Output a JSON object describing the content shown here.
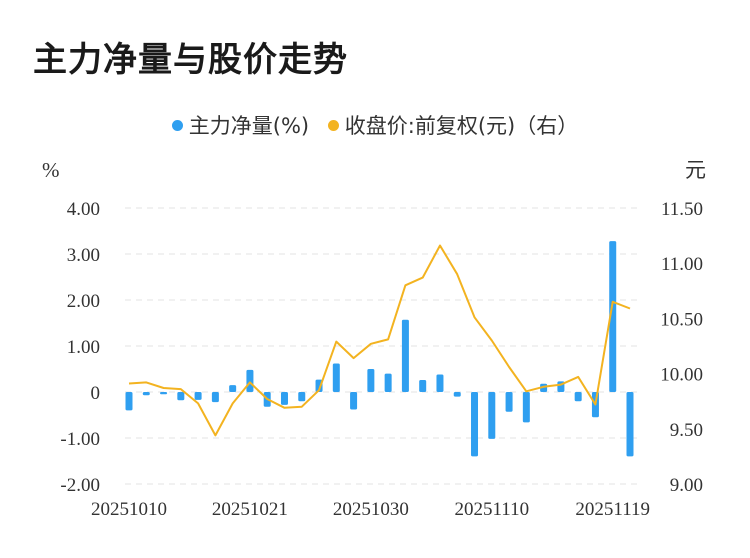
{
  "title": "主力净量与股价走势",
  "legend": [
    {
      "label": "主力净量(%)",
      "color": "#2f9ff0"
    },
    {
      "label": "收盘价:前复权(元)（右）",
      "color": "#f3b320"
    }
  ],
  "chart_data": {
    "type": "bar+line",
    "left_unit": "%",
    "right_unit": "元",
    "left_ylim": [
      -2.0,
      4.0
    ],
    "right_ylim": [
      9.0,
      11.5
    ],
    "left_ticks": [
      "4.00",
      "3.00",
      "2.00",
      "1.00",
      "0",
      "-1.00",
      "-2.00"
    ],
    "right_ticks": [
      "11.50",
      "11.00",
      "10.50",
      "10.00",
      "9.50",
      "9.00"
    ],
    "x_tick_labels": [
      "20251010",
      "20251021",
      "20251030",
      "20251110",
      "20251119"
    ],
    "x_tick_index": [
      0,
      7,
      14,
      21,
      28
    ],
    "grid": true,
    "series": [
      {
        "name": "主力净量(%)",
        "kind": "bar",
        "color": "#2f9ff0",
        "values": [
          -0.4,
          -0.07,
          -0.05,
          -0.18,
          -0.17,
          -0.22,
          0.15,
          0.48,
          -0.32,
          -0.28,
          -0.2,
          0.27,
          0.62,
          -0.38,
          0.5,
          0.4,
          1.57,
          0.26,
          0.38,
          -0.1,
          -1.4,
          -1.02,
          -0.43,
          -0.66,
          0.18,
          0.23,
          -0.2,
          -0.55,
          3.28,
          -1.4
        ]
      },
      {
        "name": "收盘价:前复权(元)（右）",
        "kind": "line",
        "color": "#f3b320",
        "values": [
          9.91,
          9.92,
          9.87,
          9.86,
          9.73,
          9.44,
          9.73,
          9.92,
          9.77,
          9.69,
          9.7,
          9.85,
          10.29,
          10.14,
          10.27,
          10.31,
          10.8,
          10.87,
          11.16,
          10.9,
          10.51,
          10.3,
          10.06,
          9.84,
          9.88,
          9.9,
          9.97,
          9.72,
          10.65,
          10.59
        ]
      }
    ]
  }
}
